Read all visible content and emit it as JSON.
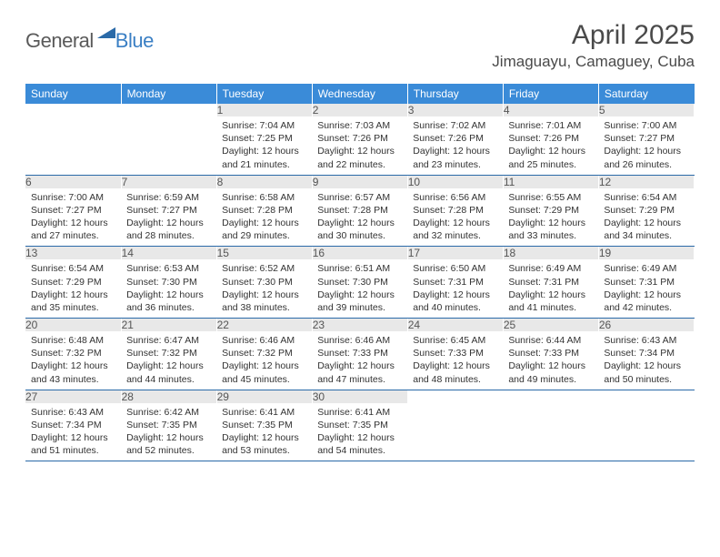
{
  "logo": {
    "general": "General",
    "blue": "Blue"
  },
  "title": "April 2025",
  "location": "Jimaguayu, Camaguey, Cuba",
  "colors": {
    "header_bg": "#3a8bd8",
    "header_fg": "#ffffff",
    "daynum_bg": "#e8e8e8",
    "row_border": "#2a6aa8",
    "logo_general": "#5a5a5a",
    "logo_blue": "#3a7fc4"
  },
  "weekdays": [
    "Sunday",
    "Monday",
    "Tuesday",
    "Wednesday",
    "Thursday",
    "Friday",
    "Saturday"
  ],
  "weeks": [
    [
      null,
      null,
      {
        "n": "1",
        "sr": "7:04 AM",
        "ss": "7:25 PM",
        "dl": "12 hours and 21 minutes."
      },
      {
        "n": "2",
        "sr": "7:03 AM",
        "ss": "7:26 PM",
        "dl": "12 hours and 22 minutes."
      },
      {
        "n": "3",
        "sr": "7:02 AM",
        "ss": "7:26 PM",
        "dl": "12 hours and 23 minutes."
      },
      {
        "n": "4",
        "sr": "7:01 AM",
        "ss": "7:26 PM",
        "dl": "12 hours and 25 minutes."
      },
      {
        "n": "5",
        "sr": "7:00 AM",
        "ss": "7:27 PM",
        "dl": "12 hours and 26 minutes."
      }
    ],
    [
      {
        "n": "6",
        "sr": "7:00 AM",
        "ss": "7:27 PM",
        "dl": "12 hours and 27 minutes."
      },
      {
        "n": "7",
        "sr": "6:59 AM",
        "ss": "7:27 PM",
        "dl": "12 hours and 28 minutes."
      },
      {
        "n": "8",
        "sr": "6:58 AM",
        "ss": "7:28 PM",
        "dl": "12 hours and 29 minutes."
      },
      {
        "n": "9",
        "sr": "6:57 AM",
        "ss": "7:28 PM",
        "dl": "12 hours and 30 minutes."
      },
      {
        "n": "10",
        "sr": "6:56 AM",
        "ss": "7:28 PM",
        "dl": "12 hours and 32 minutes."
      },
      {
        "n": "11",
        "sr": "6:55 AM",
        "ss": "7:29 PM",
        "dl": "12 hours and 33 minutes."
      },
      {
        "n": "12",
        "sr": "6:54 AM",
        "ss": "7:29 PM",
        "dl": "12 hours and 34 minutes."
      }
    ],
    [
      {
        "n": "13",
        "sr": "6:54 AM",
        "ss": "7:29 PM",
        "dl": "12 hours and 35 minutes."
      },
      {
        "n": "14",
        "sr": "6:53 AM",
        "ss": "7:30 PM",
        "dl": "12 hours and 36 minutes."
      },
      {
        "n": "15",
        "sr": "6:52 AM",
        "ss": "7:30 PM",
        "dl": "12 hours and 38 minutes."
      },
      {
        "n": "16",
        "sr": "6:51 AM",
        "ss": "7:30 PM",
        "dl": "12 hours and 39 minutes."
      },
      {
        "n": "17",
        "sr": "6:50 AM",
        "ss": "7:31 PM",
        "dl": "12 hours and 40 minutes."
      },
      {
        "n": "18",
        "sr": "6:49 AM",
        "ss": "7:31 PM",
        "dl": "12 hours and 41 minutes."
      },
      {
        "n": "19",
        "sr": "6:49 AM",
        "ss": "7:31 PM",
        "dl": "12 hours and 42 minutes."
      }
    ],
    [
      {
        "n": "20",
        "sr": "6:48 AM",
        "ss": "7:32 PM",
        "dl": "12 hours and 43 minutes."
      },
      {
        "n": "21",
        "sr": "6:47 AM",
        "ss": "7:32 PM",
        "dl": "12 hours and 44 minutes."
      },
      {
        "n": "22",
        "sr": "6:46 AM",
        "ss": "7:32 PM",
        "dl": "12 hours and 45 minutes."
      },
      {
        "n": "23",
        "sr": "6:46 AM",
        "ss": "7:33 PM",
        "dl": "12 hours and 47 minutes."
      },
      {
        "n": "24",
        "sr": "6:45 AM",
        "ss": "7:33 PM",
        "dl": "12 hours and 48 minutes."
      },
      {
        "n": "25",
        "sr": "6:44 AM",
        "ss": "7:33 PM",
        "dl": "12 hours and 49 minutes."
      },
      {
        "n": "26",
        "sr": "6:43 AM",
        "ss": "7:34 PM",
        "dl": "12 hours and 50 minutes."
      }
    ],
    [
      {
        "n": "27",
        "sr": "6:43 AM",
        "ss": "7:34 PM",
        "dl": "12 hours and 51 minutes."
      },
      {
        "n": "28",
        "sr": "6:42 AM",
        "ss": "7:35 PM",
        "dl": "12 hours and 52 minutes."
      },
      {
        "n": "29",
        "sr": "6:41 AM",
        "ss": "7:35 PM",
        "dl": "12 hours and 53 minutes."
      },
      {
        "n": "30",
        "sr": "6:41 AM",
        "ss": "7:35 PM",
        "dl": "12 hours and 54 minutes."
      },
      null,
      null,
      null
    ]
  ],
  "labels": {
    "sunrise": "Sunrise: ",
    "sunset": "Sunset: ",
    "daylight": "Daylight: "
  }
}
